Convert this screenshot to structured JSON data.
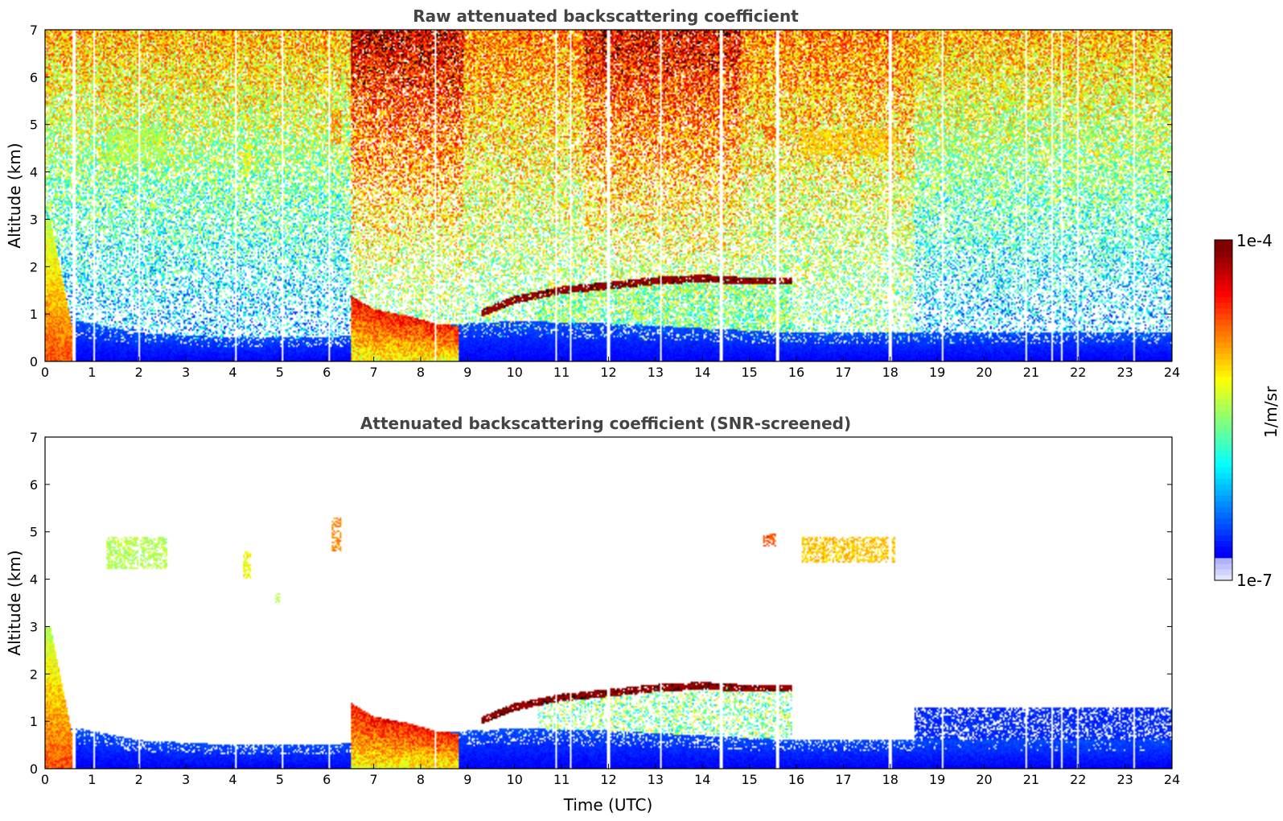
{
  "chart_data": [
    {
      "type": "heatmap",
      "title": "Raw attenuated backscattering coefficient",
      "xlabel": "",
      "ylabel": "Altitude (km)",
      "xlim": [
        0,
        24
      ],
      "ylim": [
        0,
        7
      ],
      "xticks": [
        "0",
        "1",
        "2",
        "3",
        "4",
        "5",
        "6",
        "7",
        "8",
        "9",
        "10",
        "11",
        "12",
        "13",
        "14",
        "15",
        "16",
        "17",
        "18",
        "19",
        "20",
        "21",
        "22",
        "23",
        "24"
      ],
      "yticks": [
        "0",
        "1",
        "2",
        "3",
        "4",
        "5",
        "6",
        "7"
      ],
      "grid": false,
      "screened": false,
      "features": {
        "boundary_layer_top_km": [
          [
            0,
            1.0
          ],
          [
            1,
            0.8
          ],
          [
            2,
            0.6
          ],
          [
            3,
            0.55
          ],
          [
            4,
            0.5
          ],
          [
            6,
            0.5
          ],
          [
            6.5,
            0.55
          ],
          [
            7,
            0.7
          ],
          [
            8,
            0.75
          ],
          [
            9,
            0.8
          ],
          [
            10,
            0.85
          ],
          [
            12,
            0.8
          ],
          [
            14,
            0.7
          ],
          [
            16,
            0.6
          ],
          [
            18,
            0.6
          ],
          [
            20,
            0.6
          ],
          [
            24,
            0.6
          ]
        ],
        "cloud_base_km": [
          [
            0.6,
            1.75
          ],
          [
            6.5,
            1.95
          ],
          [
            6.8,
            1.1
          ],
          [
            7.5,
            1.0
          ],
          [
            8.0,
            0.7
          ],
          [
            8.6,
            0.85
          ],
          [
            9.0,
            0.9
          ],
          [
            10.0,
            1.3
          ],
          [
            11.0,
            1.5
          ],
          [
            12.0,
            1.6
          ],
          [
            13.0,
            1.7
          ],
          [
            14.0,
            1.75
          ],
          [
            14.8,
            1.7
          ],
          [
            15.5,
            1.7
          ],
          [
            15.9,
            1.7
          ]
        ],
        "high_aerosol_layers": [
          {
            "t0": 1.3,
            "t1": 2.6,
            "z0": 4.2,
            "z1": 4.9,
            "level": 0.55
          },
          {
            "t0": 4.2,
            "t1": 4.4,
            "z0": 4.0,
            "z1": 4.6,
            "level": 0.62
          },
          {
            "t0": 4.9,
            "t1": 5.0,
            "z0": 3.5,
            "z1": 3.7,
            "level": 0.55
          },
          {
            "t0": 6.1,
            "t1": 6.3,
            "z0": 4.6,
            "z1": 5.3,
            "level": 0.75
          },
          {
            "t0": 15.3,
            "t1": 15.6,
            "z0": 4.7,
            "z1": 4.95,
            "level": 0.8
          },
          {
            "t0": 16.1,
            "t1": 18.1,
            "z0": 4.35,
            "z1": 4.9,
            "level": 0.68
          }
        ],
        "raw_noise_bands": [
          {
            "t0": 6.5,
            "t1": 8.9,
            "intensity": 0.85
          },
          {
            "t0": 8.9,
            "t1": 11.5,
            "intensity": 0.55
          },
          {
            "t0": 11.5,
            "t1": 14.8,
            "intensity": 0.8
          },
          {
            "t0": 14.8,
            "t1": 18.5,
            "intensity": 0.55
          }
        ],
        "data_gap_times": [
          0.6,
          0.65,
          1.05,
          2.0,
          4.05,
          5.05,
          6.05,
          8.3,
          10.9,
          11.2,
          12.0,
          13.1,
          14.4,
          15.6,
          18.0,
          19.1,
          20.9,
          21.45,
          21.65,
          22.0,
          23.2
        ]
      }
    },
    {
      "type": "heatmap",
      "title": "Attenuated backscattering coefficient (SNR-screened)",
      "xlabel": "Time (UTC)",
      "ylabel": "Altitude (km)",
      "xlim": [
        0,
        24
      ],
      "ylim": [
        0,
        7
      ],
      "xticks": [
        "0",
        "1",
        "2",
        "3",
        "4",
        "5",
        "6",
        "7",
        "8",
        "9",
        "10",
        "11",
        "12",
        "13",
        "14",
        "15",
        "16",
        "17",
        "18",
        "19",
        "20",
        "21",
        "22",
        "23",
        "24"
      ],
      "yticks": [
        "0",
        "1",
        "2",
        "3",
        "4",
        "5",
        "6",
        "7"
      ],
      "grid": false,
      "screened": true
    }
  ],
  "colorbar": {
    "label": "1/m/sr",
    "max_label": "1e-4",
    "min_label": "1e-7",
    "scale": "log",
    "colormap": "jet"
  }
}
